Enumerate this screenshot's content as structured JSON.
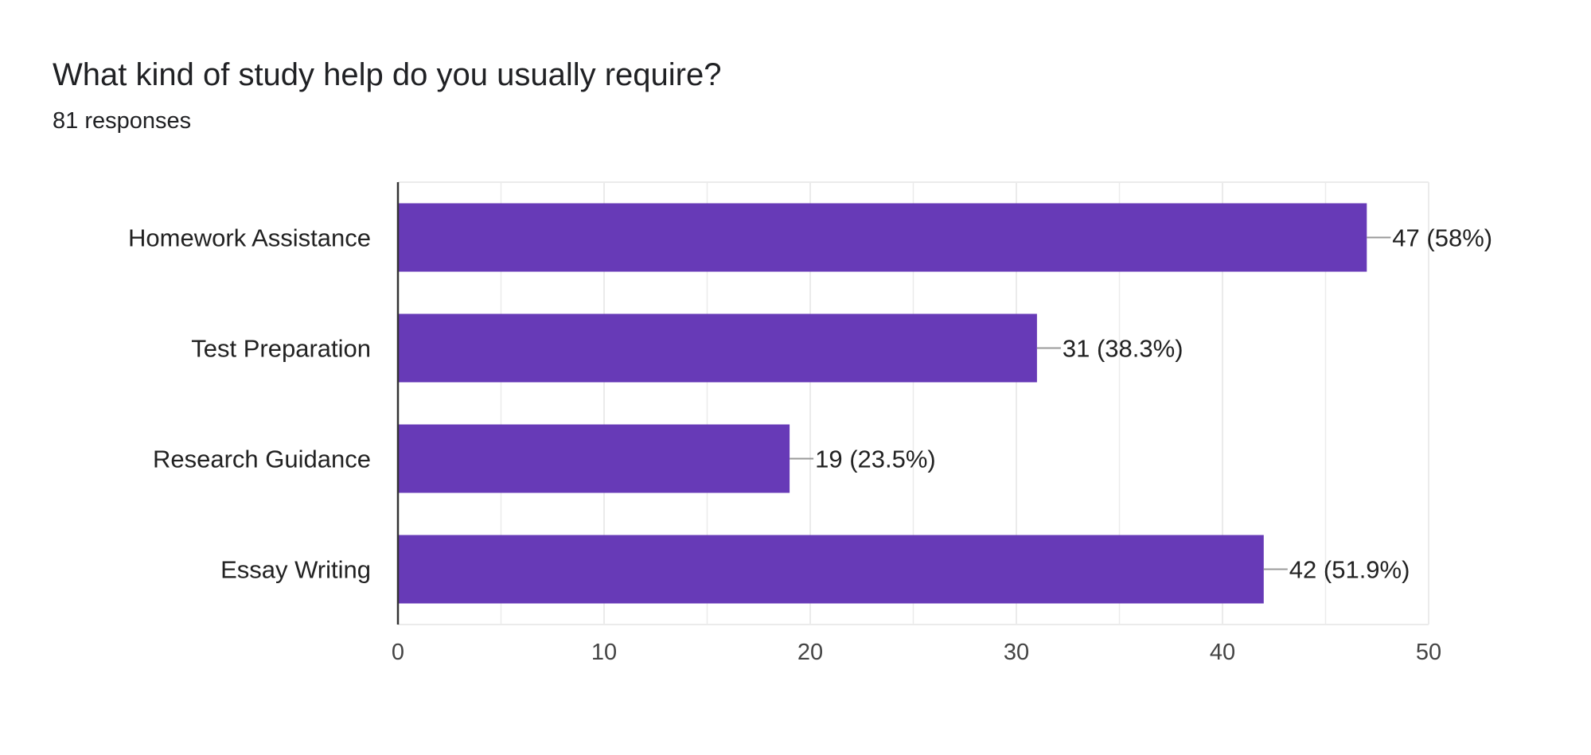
{
  "header": {
    "title": "What kind of study help do you usually require?",
    "subtitle": "81 responses"
  },
  "colors": {
    "bar": "#673ab7",
    "gridline": "#ebebeb",
    "axis": "#333333",
    "leader": "#999999"
  },
  "chart_data": {
    "type": "bar",
    "orientation": "horizontal",
    "title": "What kind of study help do you usually require?",
    "subtitle": "81 responses",
    "xlabel": "",
    "ylabel": "",
    "categories": [
      "Homework Assistance",
      "Test Preparation",
      "Research Guidance",
      "Essay Writing"
    ],
    "values": [
      47,
      31,
      19,
      42
    ],
    "percentages": [
      "58%",
      "38.3%",
      "23.5%",
      "51.9%"
    ],
    "data_labels": [
      "47 (58%)",
      "31 (38.3%)",
      "19 (23.5%)",
      "42 (51.9%)"
    ],
    "xlim": [
      0,
      50
    ],
    "xticks": [
      0,
      10,
      20,
      30,
      40,
      50
    ],
    "grid": true,
    "legend": "none"
  }
}
